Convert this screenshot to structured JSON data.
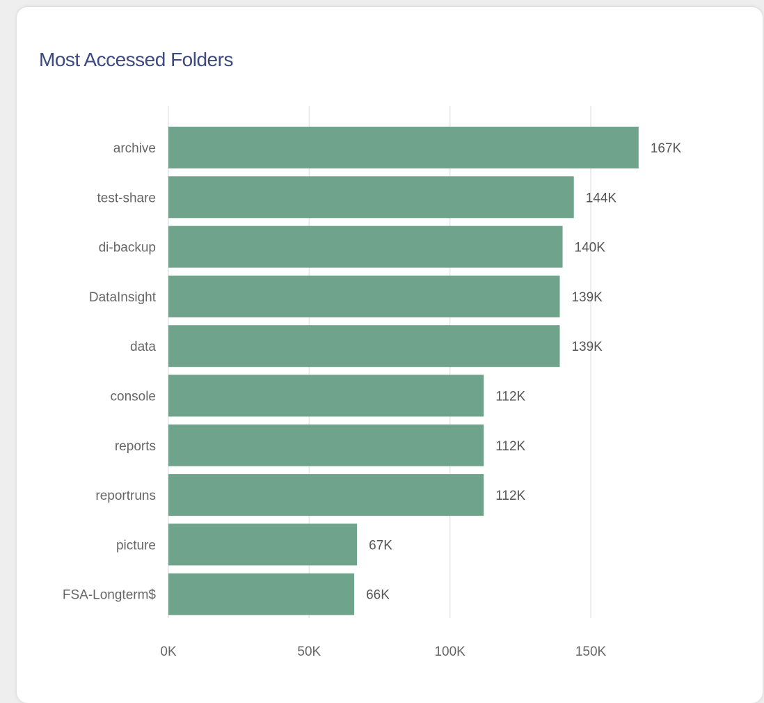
{
  "card": {
    "title": "Most Accessed Folders"
  },
  "colors": {
    "bar": "#6fa38b",
    "grid": "#e6e6e6",
    "title": "#3c4a80"
  },
  "chart_data": {
    "type": "bar",
    "orientation": "horizontal",
    "title": "Most Accessed Folders",
    "xlabel": "",
    "ylabel": "",
    "categories": [
      "archive",
      "test-share",
      "di-backup",
      "DataInsight",
      "data",
      "console",
      "reports",
      "reportruns",
      "picture",
      "FSA-Longterm$"
    ],
    "values": [
      167000,
      144000,
      140000,
      139000,
      139000,
      112000,
      112000,
      112000,
      67000,
      66000
    ],
    "value_labels": [
      "167K",
      "144K",
      "140K",
      "139K",
      "139K",
      "112K",
      "112K",
      "112K",
      "67K",
      "66K"
    ],
    "xlim": [
      0,
      150000
    ],
    "xticks": [
      0,
      50000,
      100000,
      150000
    ],
    "xtick_labels": [
      "0K",
      "50K",
      "100K",
      "150K"
    ],
    "grid": true,
    "legend": "none"
  }
}
